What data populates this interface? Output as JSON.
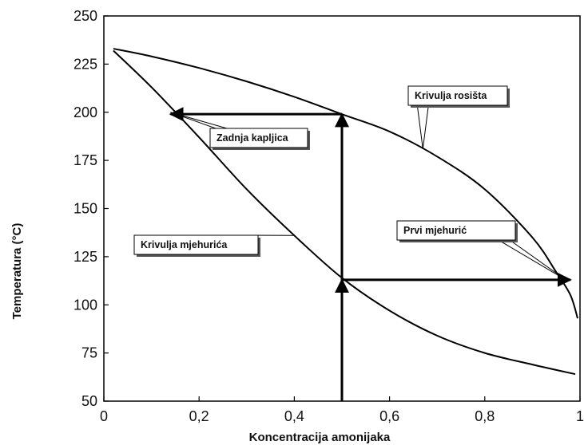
{
  "chart_data": {
    "type": "line",
    "xlabel": "Koncentracija amonijaka",
    "ylabel": "Temperatura (°C)",
    "xlim": [
      0,
      1
    ],
    "ylim": [
      50,
      250
    ],
    "x_ticks": [
      0,
      0.2,
      0.4,
      0.6,
      0.8,
      1
    ],
    "x_tick_labels": [
      "0",
      "0,2",
      "0,4",
      "0,6",
      "0,8",
      "1"
    ],
    "y_ticks": [
      50,
      75,
      100,
      125,
      150,
      175,
      200,
      225,
      250
    ],
    "y_tick_labels": [
      "50",
      "75",
      "100",
      "125",
      "150",
      "175",
      "200",
      "225",
      "250"
    ],
    "grid": false,
    "series": [
      {
        "name": "Krivulja rosišta",
        "x": [
          0.02,
          0.1,
          0.2,
          0.3,
          0.4,
          0.5,
          0.6,
          0.7,
          0.8,
          0.9,
          0.95,
          0.98,
          0.995
        ],
        "y": [
          233,
          229,
          223,
          216,
          208,
          199,
          190,
          177,
          160,
          135,
          117,
          105,
          93
        ]
      },
      {
        "name": "Krivulja mjehurića",
        "x": [
          0.02,
          0.1,
          0.2,
          0.3,
          0.4,
          0.5,
          0.6,
          0.7,
          0.8,
          0.9,
          0.99
        ],
        "y": [
          232,
          213,
          187,
          160,
          136,
          114,
          97,
          84,
          75,
          69,
          64
        ]
      }
    ],
    "arrows": [
      {
        "x1": 0.5,
        "y1": 50,
        "x2": 0.5,
        "y2": 113
      },
      {
        "x1": 0.5,
        "y1": 113,
        "x2": 0.5,
        "y2": 199
      },
      {
        "x1": 0.5,
        "y1": 199,
        "x2": 0.14,
        "y2": 199
      },
      {
        "x1": 0.5,
        "y1": 113,
        "x2": 0.98,
        "y2": 113
      }
    ],
    "annotations": [
      {
        "text": "Krivulja rosišta",
        "target": [
          0.67,
          181
        ]
      },
      {
        "text": "Zadnja kapljica",
        "target": [
          0.14,
          200
        ]
      },
      {
        "text": "Krivulja mjehurića",
        "target": [
          0.4,
          136
        ]
      },
      {
        "text": "Prvi mjehurić",
        "target": [
          0.97,
          113
        ]
      }
    ]
  }
}
